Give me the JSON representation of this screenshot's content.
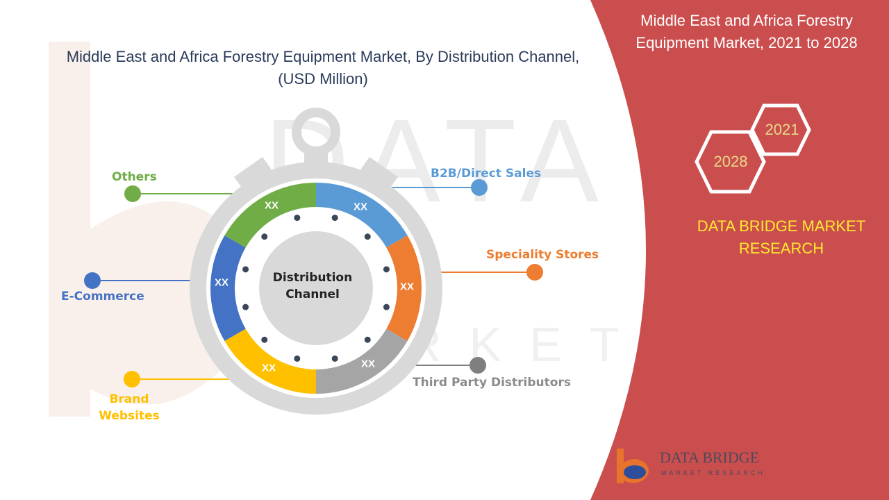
{
  "chart_title": "Middle East and Africa Forestry Equipment Market, By Distribution Channel, (USD Million)",
  "panel": {
    "title": "Middle East and Africa Forestry Equipment Market, 2021 to 2028",
    "year_start": "2021",
    "year_end": "2028",
    "brand_text": "DATA BRIDGE MARKET RESEARCH",
    "accent_color": "#cb4e4e"
  },
  "logo": {
    "name": "DATA BRIDGE",
    "subtitle": "MARKET RESEARCH"
  },
  "chart_data": {
    "type": "pie",
    "center_label": "Distribution Channel",
    "segments": [
      {
        "name": "B2B/Direct Sales",
        "value": "XX",
        "color": "#5b9bd5"
      },
      {
        "name": "Speciality Stores",
        "value": "XX",
        "color": "#ed7d31"
      },
      {
        "name": "Third Party Distributors",
        "value": "XX",
        "color": "#a5a5a5"
      },
      {
        "name": "Brand Websites",
        "value": "XX",
        "color": "#ffc000"
      },
      {
        "name": "E-Commerce",
        "value": "XX",
        "color": "#4472c4"
      },
      {
        "name": "Others",
        "value": "XX",
        "color": "#70ad47"
      }
    ]
  }
}
